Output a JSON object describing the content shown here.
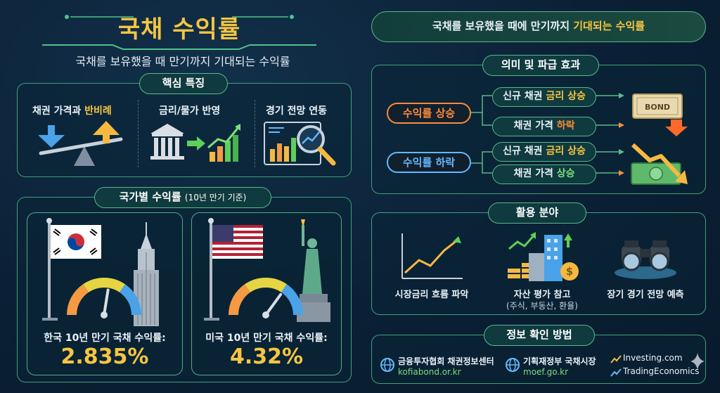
{
  "title": "국채 수익률",
  "subtitle": "국채를 보유했을 때 만기까지 기대되는 수익률",
  "banner": {
    "prefix": "국채를 보유했을 때에 만기까지 ",
    "highlight": "기대되는 수익률"
  },
  "key_features": {
    "header": "핵심 특징",
    "items": [
      {
        "label_prefix": "채권 가격과 ",
        "label_highlight": "반비례",
        "icon": "seesaw-icon"
      },
      {
        "label": "금리/물가 반영",
        "icon": "bank-growth-icon"
      },
      {
        "label": "경기 전망 연동",
        "icon": "magnifier-chart-icon"
      }
    ]
  },
  "country_yields": {
    "header_main": "국가별 수익률",
    "header_sub": "(10년 만기 기준)",
    "korea": {
      "label": "한국 10년 만기 국채 수익률:",
      "value": "2.835%",
      "gauge_fraction": 0.55
    },
    "usa": {
      "label": "미국 10년 만기 국채 수익률:",
      "value": "4.32%",
      "gauge_fraction": 0.7
    }
  },
  "implications": {
    "header": "의미 및 파급 효과",
    "rise": {
      "label": "수익률 상승",
      "effect1_prefix": "신규 채권 ",
      "effect1_highlight": "금리 상승",
      "effect2_prefix": "채권 가격 ",
      "effect2_highlight": "하락",
      "icon_text": "BOND"
    },
    "fall": {
      "label": "수익률 하락",
      "effect1_prefix": "신규 채권 ",
      "effect1_highlight": "금리 상승",
      "effect2_prefix": "채권 가격 ",
      "effect2_highlight": "상승"
    }
  },
  "usage": {
    "header": "활용 분야",
    "items": [
      {
        "label": "시장금리 흐름 파악",
        "icon": "line-chart-icon"
      },
      {
        "label": "자산 평가 참고",
        "sub": "(주식, 부동산, 환율)",
        "icon": "assets-icon"
      },
      {
        "label": "장기 경기 전망 예측",
        "icon": "binoculars-icon"
      }
    ]
  },
  "sources": {
    "header": "정보 확인 방법",
    "items": [
      {
        "name": "금융투자협회 채권정보센터",
        "url": "kofiabond.or.kr"
      },
      {
        "name": "기획재정부 국채시장",
        "url": "moef.go.kr"
      }
    ],
    "brands": [
      "Investing.com",
      "TradingEconomics"
    ]
  },
  "colors": {
    "accent_yellow": "#f5c542",
    "accent_green": "#7ddf7a",
    "accent_orange": "#ff8a3a",
    "accent_blue": "#64b8ff",
    "border_green": "#3fa07a"
  }
}
